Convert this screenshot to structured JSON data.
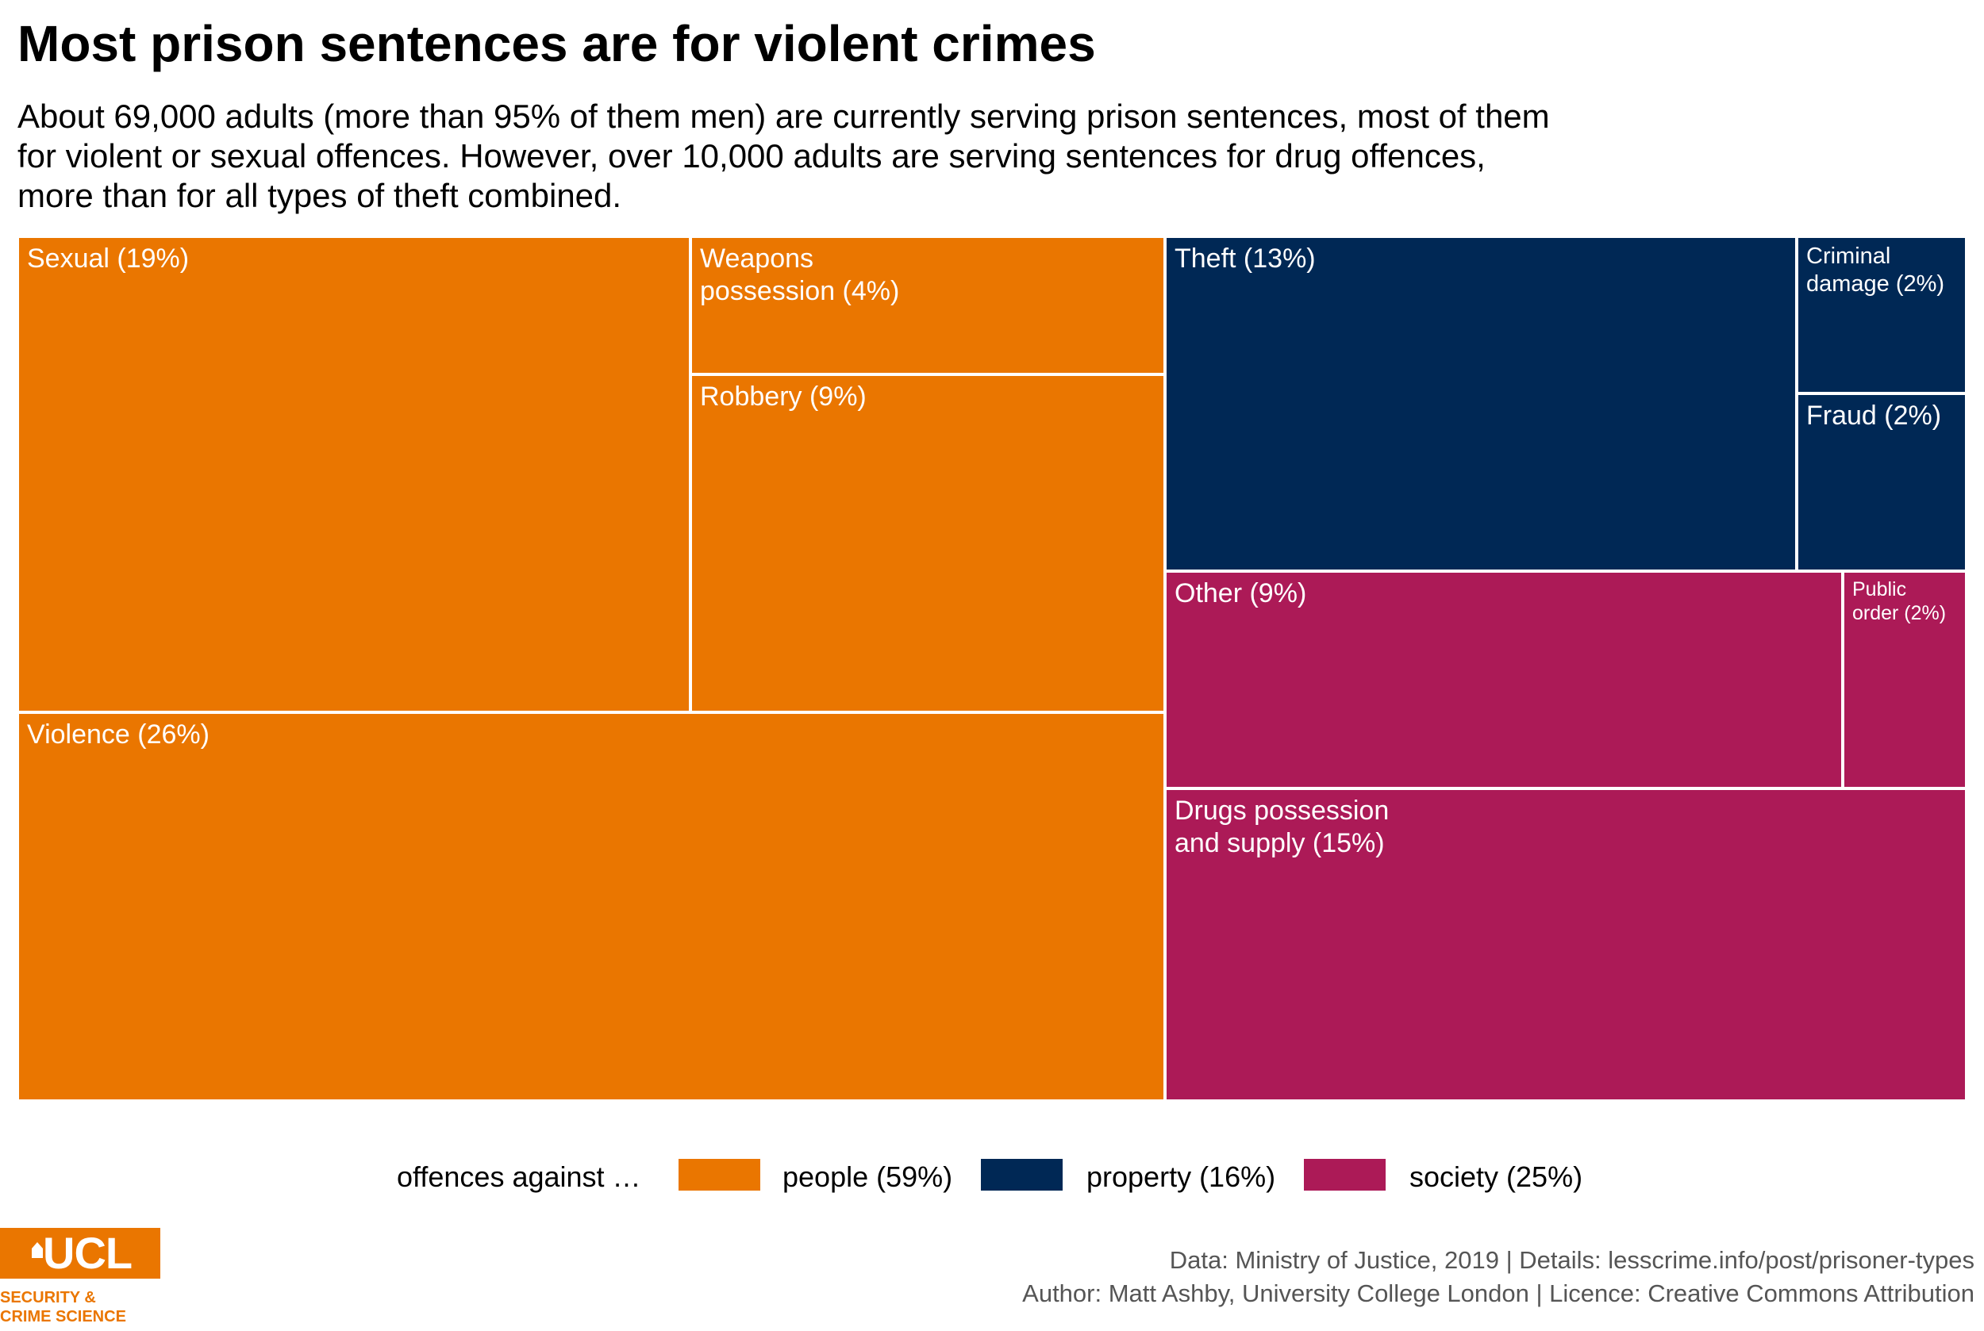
{
  "title": "Most prison sentences are for violent crimes",
  "subtitle": [
    "About 69,000 adults (more than 95% of them men) are currently serving prison sentences, most of them",
    "for violent or sexual offences. However, over 10,000 adults are serving sentences for drug offences,",
    "more than for all types of theft combined."
  ],
  "colors": {
    "people": "#ea7600",
    "property": "#002855",
    "society": "#ac1a57"
  },
  "chart_data": {
    "type": "treemap",
    "unit": "percent of adult prisoners",
    "groups": [
      {
        "name": "people",
        "label": "people (59%)",
        "value": 59,
        "color": "#ea7600",
        "items": [
          {
            "name": "Violence",
            "label": "Violence (26%)",
            "value": 26
          },
          {
            "name": "Sexual",
            "label": "Sexual (19%)",
            "value": 19
          },
          {
            "name": "Robbery",
            "label": "Robbery (9%)",
            "value": 9
          },
          {
            "name": "Weapons possession",
            "label": "Weapons\npossession (4%)",
            "value": 4
          }
        ]
      },
      {
        "name": "property",
        "label": "property (16%)",
        "value": 16,
        "color": "#002855",
        "items": [
          {
            "name": "Theft",
            "label": "Theft (13%)",
            "value": 13
          },
          {
            "name": "Criminal damage",
            "label": "Criminal\ndamage (2%)",
            "value": 2
          },
          {
            "name": "Fraud",
            "label": "Fraud (2%)",
            "value": 2
          }
        ]
      },
      {
        "name": "society",
        "label": "society (25%)",
        "value": 25,
        "color": "#ac1a57",
        "items": [
          {
            "name": "Drugs possession and supply",
            "label": "Drugs possession\nand supply (15%)",
            "value": 15
          },
          {
            "name": "Other",
            "label": "Other (9%)",
            "value": 9
          },
          {
            "name": "Public order",
            "label": "Public\norder (2%)",
            "value": 2
          }
        ]
      }
    ]
  },
  "legend": {
    "title": "offences against …",
    "items": [
      {
        "key": "people",
        "label": "people (59%)"
      },
      {
        "key": "property",
        "label": "property (16%)"
      },
      {
        "key": "society",
        "label": "society (25%)"
      }
    ]
  },
  "logo": {
    "text": "UCL",
    "line1": "SECURITY &",
    "line2": "CRIME SCIENCE"
  },
  "credits": {
    "line1": "Data: Ministry of Justice, 2019 |  Details: lesscrime.info/post/prisoner-types",
    "line2": "Author: Matt Ashby, University College London |  Licence: Creative Commons Attribution"
  }
}
